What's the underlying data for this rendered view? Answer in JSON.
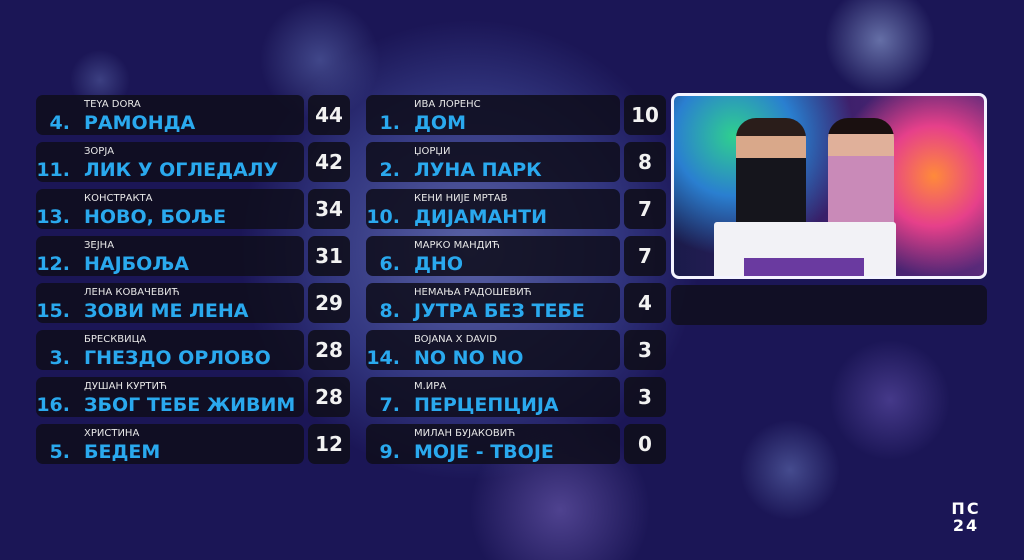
{
  "left_column": [
    {
      "rank": "4.",
      "artist": "TEYA DORA",
      "song": "РАМОНДА",
      "points": "44"
    },
    {
      "rank": "11.",
      "artist": "ЗОРЈА",
      "song": "ЛИК У ОГЛЕДАЛУ",
      "points": "42"
    },
    {
      "rank": "13.",
      "artist": "КОНСТРАКТА",
      "song": "НОВО, БОЉЕ",
      "points": "34"
    },
    {
      "rank": "12.",
      "artist": "ЗЕЈНА",
      "song": "НАЈБОЉА",
      "points": "31"
    },
    {
      "rank": "15.",
      "artist": "ЛЕНА КОВАЧЕВИЋ",
      "song": "ЗОВИ МЕ ЛЕНА",
      "points": "29"
    },
    {
      "rank": "3.",
      "artist": "БРЕСКВИЦА",
      "song": "ГНЕЗДО ОРЛОВО",
      "points": "28"
    },
    {
      "rank": "16.",
      "artist": "ДУШАН КУРТИЋ",
      "song": "ЗБОГ ТЕБЕ ЖИВИМ",
      "points": "28"
    },
    {
      "rank": "5.",
      "artist": "ХРИСТИНА",
      "song": "БЕДЕМ",
      "points": "12"
    }
  ],
  "right_column": [
    {
      "rank": "1.",
      "artist": "ИВА ЛОРЕНС",
      "song": "ДОМ",
      "points": "10"
    },
    {
      "rank": "2.",
      "artist": "ЏОРЏИ",
      "song": "ЛУНА ПАРК",
      "points": "8"
    },
    {
      "rank": "10.",
      "artist": "КЕНИ НИЈЕ МРТАВ",
      "song": "ДИЈАМАНТИ",
      "points": "7"
    },
    {
      "rank": "6.",
      "artist": "МАРКО МАНДИЋ",
      "song": "ДНО",
      "points": "7"
    },
    {
      "rank": "8.",
      "artist": "НЕМАЊА РАДОШЕВИЋ",
      "song": "ЈУТРА БЕЗ ТЕБЕ",
      "points": "4"
    },
    {
      "rank": "14.",
      "artist": "BOJANA X DAVID",
      "song": "NO NO NO",
      "points": "3"
    },
    {
      "rank": "7.",
      "artist": "M.ИРА",
      "song": "ПЕРЦЕПЦИЈА",
      "points": "3"
    },
    {
      "rank": "9.",
      "artist": "МИЛАН БУЈАКОВИЋ",
      "song": "МОЈЕ - ТВОЈЕ",
      "points": "0"
    }
  ],
  "logo": {
    "line1": "ПС",
    "line2": "24"
  },
  "colors": {
    "song": "#2aa9ee",
    "background": "#1b1656",
    "box": "#0f0e1c"
  }
}
